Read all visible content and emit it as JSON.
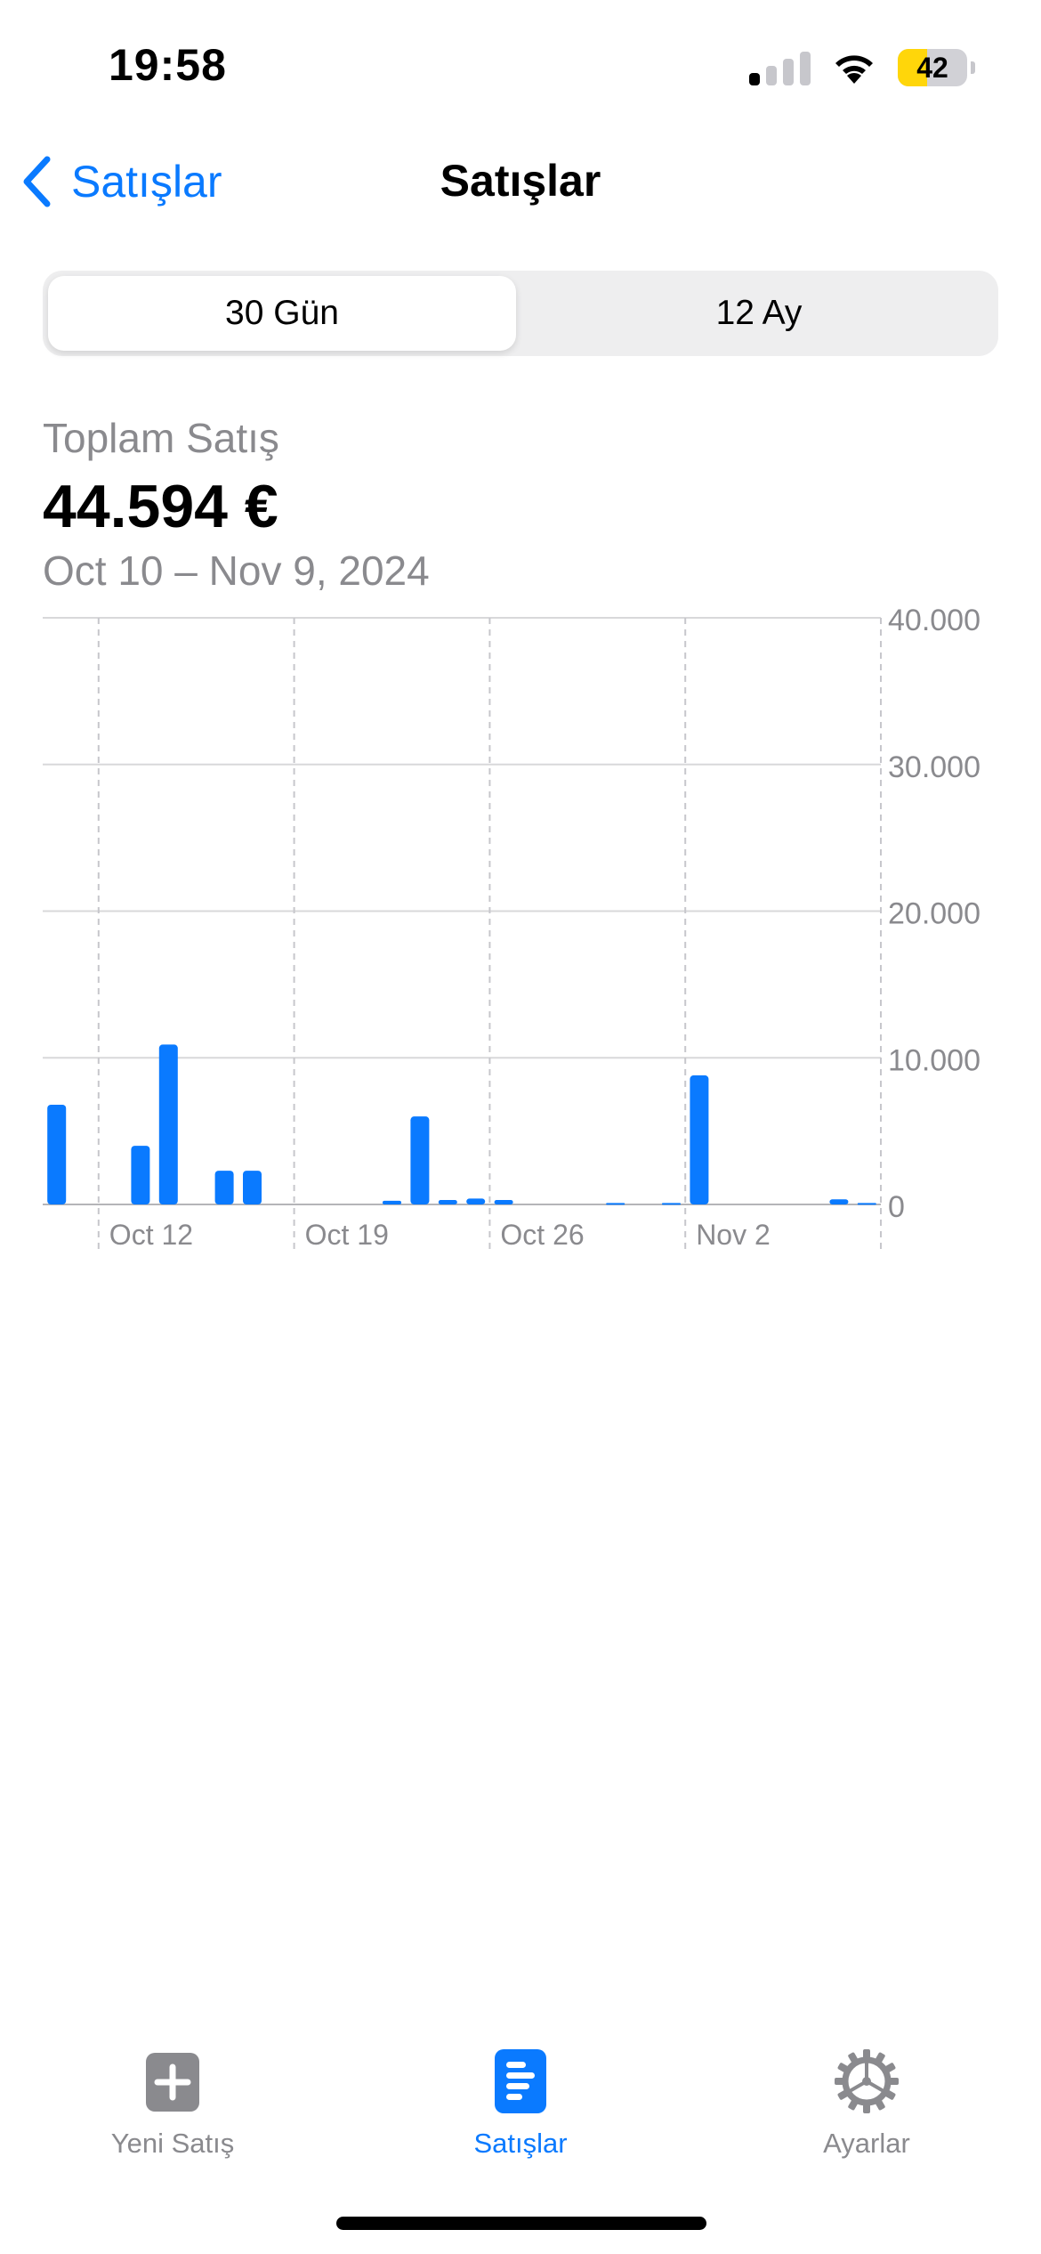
{
  "status_bar": {
    "time": "19:58",
    "battery": "42",
    "battery_level": 0.42,
    "signal_bars": 4,
    "signal_bars_active": 1
  },
  "nav": {
    "back_label": "Satışlar",
    "title": "Satışlar"
  },
  "segmented": {
    "options": [
      "30 Gün",
      "12 Ay"
    ],
    "selected": 0
  },
  "summary": {
    "label": "Toplam Satış",
    "value": "44.594 €",
    "range": "Oct 10 – Nov 9, 2024"
  },
  "chart_data": {
    "type": "bar",
    "title": "",
    "xlabel": "",
    "ylabel": "",
    "ylim": [
      0,
      40000
    ],
    "yticks": [
      "40.000",
      "30.000",
      "20.000",
      "10.000",
      "0"
    ],
    "y_tick_values": [
      40000,
      30000,
      20000,
      10000,
      0
    ],
    "x_tick_labels": [
      "Oct 12",
      "Oct 19",
      "Oct 26",
      "Nov 2"
    ],
    "x_tick_dates": [
      "2024-10-12",
      "2024-10-19",
      "2024-10-26",
      "2024-11-02"
    ],
    "grid": true,
    "bar_color": "#0a7aff",
    "categories": [
      "2024-10-10",
      "2024-10-11",
      "2024-10-12",
      "2024-10-13",
      "2024-10-14",
      "2024-10-15",
      "2024-10-16",
      "2024-10-17",
      "2024-10-18",
      "2024-10-19",
      "2024-10-20",
      "2024-10-21",
      "2024-10-22",
      "2024-10-23",
      "2024-10-24",
      "2024-10-25",
      "2024-10-26",
      "2024-10-27",
      "2024-10-28",
      "2024-10-29",
      "2024-10-30",
      "2024-10-31",
      "2024-11-01",
      "2024-11-02",
      "2024-11-03",
      "2024-11-04",
      "2024-11-05",
      "2024-11-06",
      "2024-11-07",
      "2024-11-08"
    ],
    "values": [
      6800,
      0,
      0,
      4000,
      10900,
      0,
      2300,
      2300,
      0,
      0,
      0,
      0,
      250,
      6000,
      300,
      400,
      300,
      0,
      0,
      0,
      100,
      0,
      100,
      8800,
      0,
      0,
      0,
      0,
      350,
      100
    ]
  },
  "tabbar": {
    "items": [
      {
        "label": "Yeni Satış",
        "icon": "plus-square-icon"
      },
      {
        "label": "Satışlar",
        "icon": "sales-chart-icon"
      },
      {
        "label": "Ayarlar",
        "icon": "gear-icon"
      }
    ],
    "active": 1,
    "active_color": "#0a7aff",
    "inactive_color": "#8a8a8e"
  }
}
